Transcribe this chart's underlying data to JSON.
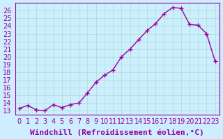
{
  "x": [
    0,
    1,
    2,
    3,
    4,
    5,
    6,
    7,
    8,
    9,
    10,
    11,
    12,
    13,
    14,
    15,
    16,
    17,
    18,
    19,
    20,
    21,
    22,
    23
  ],
  "y": [
    13.3,
    13.7,
    13.1,
    13.0,
    13.8,
    13.4,
    13.8,
    14.0,
    15.3,
    16.7,
    17.6,
    18.3,
    20.0,
    21.0,
    22.2,
    23.4,
    24.3,
    25.6,
    26.4,
    26.3,
    24.2,
    24.1,
    23.0,
    19.4
  ],
  "line_color": "#990099",
  "marker": "+",
  "bg_color": "#cceeff",
  "grid_color": "#aaddcc",
  "xlabel": "Windchill (Refroidissement éolien,°C)",
  "xlabel_color": "#990099",
  "ylabel_ticks": [
    13,
    14,
    15,
    16,
    17,
    18,
    19,
    20,
    21,
    22,
    23,
    24,
    25,
    26
  ],
  "ylim": [
    12.5,
    27.0
  ],
  "xlim": [
    -0.5,
    23.5
  ],
  "tick_fontsize": 7,
  "xlabel_fontsize": 8
}
